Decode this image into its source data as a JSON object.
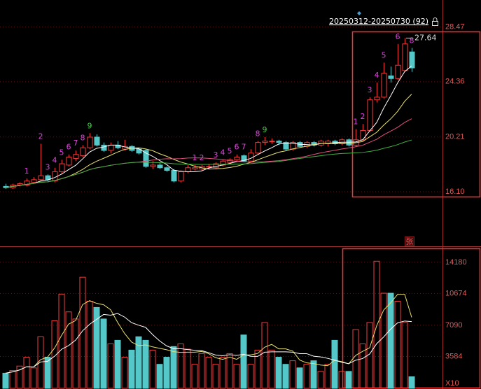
{
  "chart_data": {
    "type": "candlestick",
    "range_label": "20250312-20250730 (92)",
    "max_label": 27.64,
    "volume_badge": "张",
    "volume_unit": "X10",
    "up_color": "#f03c3c",
    "down_color": "#54c8c8",
    "ylim": [
      12.0,
      30.5
    ],
    "yticks": [
      {
        "value": 16.1,
        "label": "16.10"
      },
      20.21,
      24.36,
      28.47
    ],
    "vlim": [
      0,
      15900
    ],
    "vticks": [
      3584,
      7090,
      10674,
      14180
    ],
    "open": [
      16.5,
      16.4,
      16.6,
      16.6,
      16.8,
      17.0,
      17.3,
      16.9,
      17.6,
      18.1,
      18.6,
      18.8,
      19.4,
      20.2,
      19.6,
      19.2,
      19.6,
      19.3,
      19.5,
      19.3,
      19.2,
      18.0,
      18.1,
      17.9,
      17.7,
      16.9,
      17.6,
      17.8,
      17.8,
      18.0,
      17.9,
      18.1,
      18.3,
      18.5,
      18.8,
      18.4,
      19.0,
      19.8,
      19.9,
      19.9,
      19.8,
      19.3,
      19.8,
      19.5,
      19.8,
      19.6,
      19.7,
      19.9,
      19.7,
      20.0,
      19.6,
      20.0,
      20.7,
      23.0,
      23.2,
      24.8,
      24.6,
      25.2,
      26.6
    ],
    "high": [
      16.7,
      16.7,
      16.8,
      17.1,
      17.2,
      19.7,
      17.4,
      17.9,
      18.5,
      18.9,
      19.2,
      19.6,
      20.5,
      20.4,
      19.8,
      19.8,
      19.9,
      20.0,
      19.6,
      19.4,
      19.3,
      18.4,
      18.3,
      18.0,
      17.8,
      17.7,
      18.1,
      18.1,
      18.1,
      18.2,
      18.3,
      18.5,
      18.6,
      18.9,
      18.9,
      19.3,
      19.9,
      20.2,
      20.1,
      20.0,
      19.9,
      19.9,
      19.9,
      19.9,
      19.9,
      20.0,
      20.0,
      20.0,
      20.1,
      20.1,
      20.8,
      21.2,
      23.2,
      24.3,
      25.8,
      25.5,
      27.2,
      27.64,
      26.9
    ],
    "low": [
      16.3,
      16.3,
      16.5,
      16.5,
      16.7,
      16.9,
      16.9,
      16.8,
      17.4,
      18.0,
      18.4,
      18.7,
      19.3,
      19.5,
      19.1,
      19.0,
      19.3,
      19.2,
      19.1,
      18.9,
      17.9,
      17.8,
      17.8,
      17.6,
      16.8,
      16.8,
      17.5,
      17.7,
      17.7,
      17.8,
      17.8,
      18.0,
      18.2,
      18.4,
      18.3,
      18.3,
      18.9,
      19.6,
      19.7,
      19.6,
      19.2,
      19.2,
      19.4,
      19.4,
      19.5,
      19.5,
      19.5,
      19.6,
      19.6,
      19.5,
      19.5,
      19.9,
      20.6,
      22.8,
      23.1,
      24.3,
      24.5,
      25.1,
      25.1
    ],
    "close": [
      16.4,
      16.6,
      16.7,
      16.9,
      17.0,
      17.3,
      17.0,
      17.6,
      18.2,
      18.7,
      18.9,
      19.4,
      20.2,
      19.6,
      19.2,
      19.6,
      19.4,
      19.5,
      19.2,
      19.0,
      18.0,
      18.1,
      17.9,
      17.7,
      16.9,
      17.6,
      17.9,
      17.9,
      18.0,
      18.0,
      18.2,
      18.4,
      18.5,
      18.7,
      18.4,
      19.0,
      19.8,
      19.9,
      19.9,
      19.8,
      19.3,
      19.8,
      19.5,
      19.8,
      19.6,
      19.9,
      19.9,
      19.7,
      20.0,
      19.6,
      20.0,
      20.7,
      23.0,
      23.2,
      25.0,
      24.6,
      25.6,
      27.2,
      25.4
    ],
    "volume": [
      1700,
      2000,
      2500,
      3500,
      2300,
      5800,
      3500,
      7600,
      10600,
      8600,
      7800,
      12500,
      9800,
      9100,
      7800,
      5000,
      5400,
      3500,
      4300,
      5800,
      5400,
      4300,
      2700,
      3500,
      4700,
      5000,
      4400,
      2700,
      3900,
      3500,
      2700,
      3500,
      3900,
      2700,
      6000,
      2700,
      4300,
      7400,
      4300,
      3500,
      2700,
      3100,
      2300,
      2700,
      3100,
      1900,
      2700,
      5400,
      1900,
      1900,
      6600,
      5000,
      7400,
      14300,
      10700,
      10700,
      9800,
      7400,
      1300
    ],
    "td": [
      null,
      null,
      null,
      {
        "label": "1",
        "color": "#e040e0"
      },
      null,
      {
        "label": "2",
        "color": "#e040e0"
      },
      {
        "label": "3",
        "color": "#e040e0"
      },
      {
        "label": "4",
        "color": "#e040e0"
      },
      {
        "label": "5",
        "color": "#e040e0"
      },
      {
        "label": "6",
        "color": "#e040e0"
      },
      {
        "label": "7",
        "color": "#e040e0"
      },
      {
        "label": "8",
        "color": "#e040e0"
      },
      {
        "label": "9",
        "color": "#40d040"
      },
      null,
      null,
      null,
      null,
      null,
      null,
      null,
      null,
      null,
      null,
      null,
      null,
      null,
      null,
      {
        "label": "1",
        "color": "#e040e0"
      },
      {
        "label": "2",
        "color": "#e040e0"
      },
      null,
      {
        "label": "3",
        "color": "#e040e0"
      },
      {
        "label": "4",
        "color": "#e040e0"
      },
      {
        "label": "5",
        "color": "#e040e0"
      },
      {
        "label": "6",
        "color": "#e040e0"
      },
      {
        "label": "7",
        "color": "#e040e0"
      },
      null,
      {
        "label": "8",
        "color": "#e040e0"
      },
      {
        "label": "9",
        "color": "#40d040"
      },
      null,
      null,
      null,
      null,
      null,
      null,
      null,
      null,
      null,
      null,
      null,
      null,
      {
        "label": "1",
        "color": "#e040e0"
      },
      {
        "label": "2",
        "color": "#e040e0"
      },
      {
        "label": "3",
        "color": "#e040e0"
      },
      {
        "label": "4",
        "color": "#e040e0"
      },
      {
        "label": "5",
        "color": "#e040e0"
      },
      null,
      {
        "label": "6",
        "color": "#e040e0"
      },
      null,
      {
        "label": "8",
        "color": "#e040e0"
      }
    ]
  }
}
